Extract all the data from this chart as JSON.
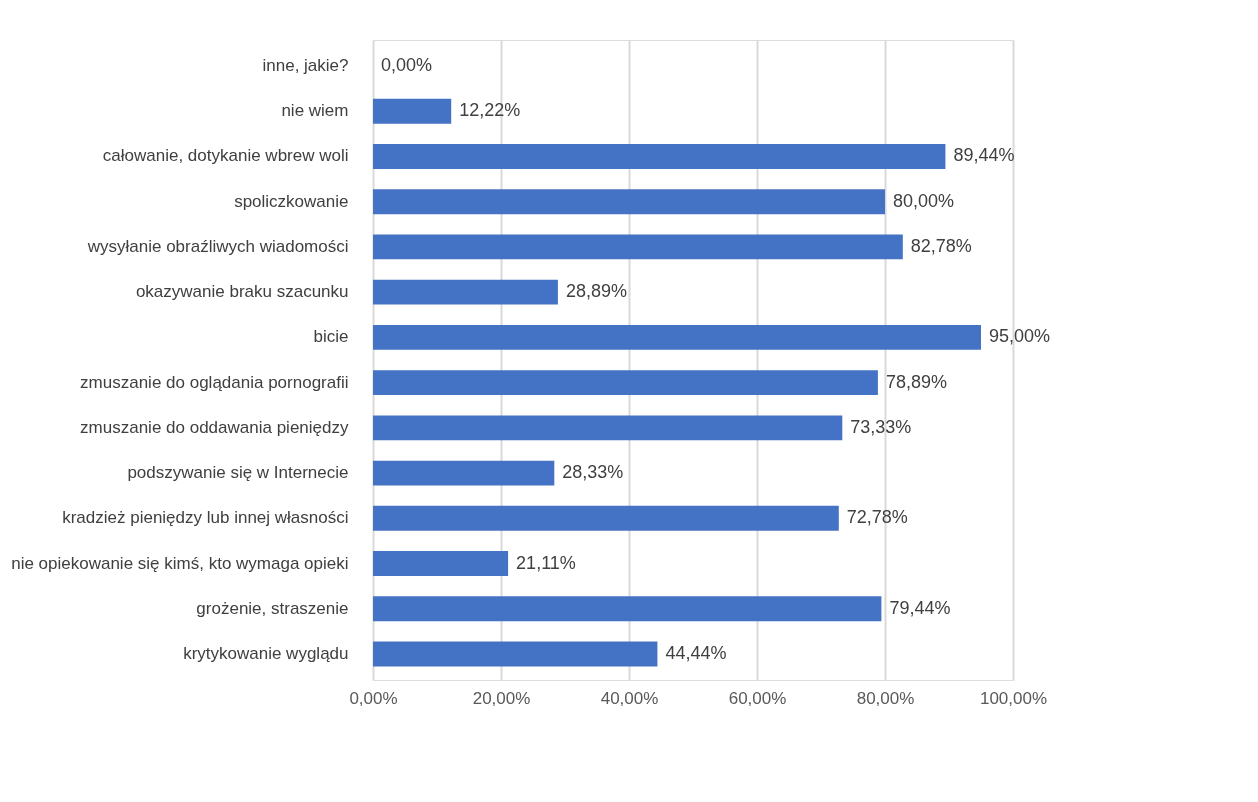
{
  "chart_data": {
    "type": "bar",
    "orientation": "horizontal",
    "color": "#4472c4",
    "grid": "x",
    "categories": [
      "inne, jakie?",
      "nie wiem",
      "całowanie, dotykanie wbrew woli",
      "spoliczkowanie",
      "wysyłanie obraźliwych wiadomości",
      "okazywanie braku szacunku",
      "bicie",
      "zmuszanie do oglądania pornografii",
      "zmuszanie do oddawania pieniędzy",
      "podszywanie się w Internecie",
      "kradzież pieniędzy lub innej własności",
      "nie opiekowanie się kimś, kto wymaga opieki",
      "grożenie, straszenie",
      "krytykowanie wyglądu"
    ],
    "values": [
      0,
      12.22,
      89.44,
      80,
      82.78,
      28.89,
      95,
      78.89,
      73.33,
      28.33,
      72.78,
      21.11,
      79.44,
      44.44
    ],
    "value_labels": [
      "0,00%",
      "12,22%",
      "89,44%",
      "80,00%",
      "82,78%",
      "28,89%",
      "95,00%",
      "78,89%",
      "73,33%",
      "28,33%",
      "72,78%",
      "21,11%",
      "79,44%",
      "44,44%"
    ],
    "xlim": [
      0,
      100
    ],
    "xticks": [
      {
        "value": 0,
        "label": "0,00%"
      },
      {
        "value": 20,
        "label": "20,00%"
      },
      {
        "value": 40,
        "label": "40,00%"
      },
      {
        "value": 60,
        "label": "60,00%"
      },
      {
        "value": 80,
        "label": "80,00%"
      },
      {
        "value": 100,
        "label": "100,00%"
      }
    ]
  }
}
